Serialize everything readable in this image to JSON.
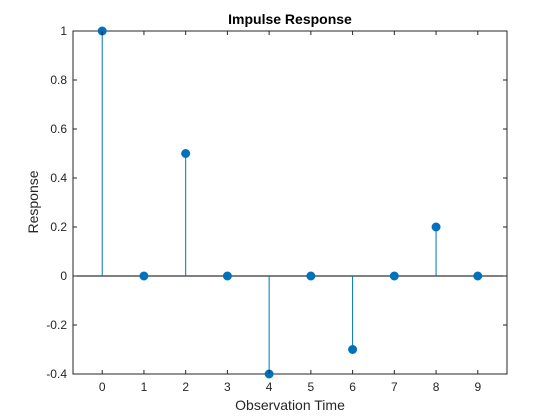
{
  "chart_data": {
    "type": "stem",
    "title": "Impulse Response",
    "xlabel": "Observation Time",
    "ylabel": "Response",
    "x": [
      0,
      1,
      2,
      3,
      4,
      5,
      6,
      7,
      8,
      9
    ],
    "values": [
      1,
      0,
      0.5,
      0,
      -0.4,
      0,
      -0.3,
      0,
      0.2,
      0
    ],
    "xlim": [
      -0.7,
      9.7
    ],
    "ylim": [
      -0.4,
      1
    ],
    "xticks": [
      "0",
      "1",
      "2",
      "3",
      "4",
      "5",
      "6",
      "7",
      "8",
      "9"
    ],
    "yticks": [
      "-0.4",
      "-0.2",
      "0",
      "0.2",
      "0.4",
      "0.6",
      "0.8",
      "1"
    ],
    "ytick_values": [
      -0.4,
      -0.2,
      0,
      0.2,
      0.4,
      0.6,
      0.8,
      1
    ],
    "grid": false,
    "baseline": 0,
    "colors": {
      "series": "#0072BD",
      "axis": "#262626",
      "baseline": "#000000"
    }
  }
}
